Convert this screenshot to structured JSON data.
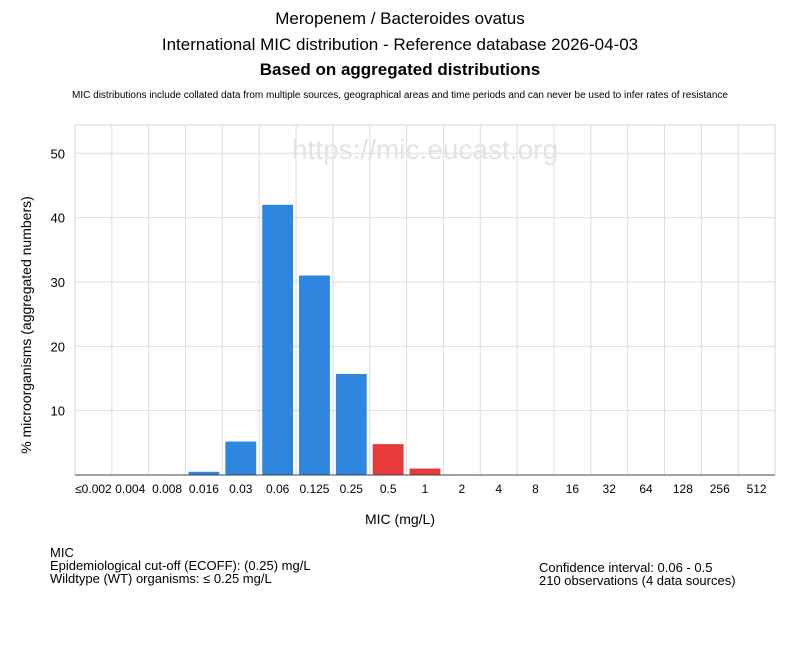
{
  "header": {
    "title": "Meropenem / Bacteroides ovatus",
    "subtitle": "International MIC distribution - Reference database 2026-04-03",
    "subtitle2": "Based on aggregated distributions",
    "note": "MIC distributions include collated data from multiple sources, geographical areas and time periods and can never be used to infer rates of resistance"
  },
  "watermark": "https://mic.eucast.org",
  "chart_data": {
    "type": "bar",
    "categories": [
      "≤0.002",
      "0.004",
      "0.008",
      "0.016",
      "0.03",
      "0.06",
      "0.125",
      "0.25",
      "0.5",
      "1",
      "2",
      "4",
      "8",
      "16",
      "32",
      "64",
      "128",
      "256",
      "512"
    ],
    "values": [
      0,
      0,
      0,
      0.5,
      5.2,
      42,
      31,
      15.7,
      4.8,
      1.0,
      0,
      0,
      0,
      0,
      0,
      0,
      0,
      0,
      0
    ],
    "bar_colors": [
      "#2f86de",
      "#2f86de",
      "#2f86de",
      "#2f86de",
      "#2f86de",
      "#2f86de",
      "#2f86de",
      "#2f86de",
      "#e83a3a",
      "#e83a3a",
      "#e83a3a",
      "#e83a3a",
      "#e83a3a",
      "#e83a3a",
      "#e83a3a",
      "#e83a3a",
      "#e83a3a",
      "#e83a3a",
      "#e83a3a"
    ],
    "xlabel": "MIC (mg/L)",
    "ylabel": "% microorganisms (aggregated numbers)",
    "yticks": [
      10,
      20,
      30,
      40,
      50
    ],
    "ylim": [
      0,
      54.4
    ],
    "grid": true
  },
  "footer": {
    "mic_label": "MIC",
    "ecoff": "Epidemiological cut-off (ECOFF): (0.25) mg/L",
    "wildtype": "Wildtype (WT) organisms: ≤ 0.25 mg/L",
    "confidence": "Confidence interval: 0.06 - 0.5",
    "observations": "210 observations (4 data sources)"
  }
}
